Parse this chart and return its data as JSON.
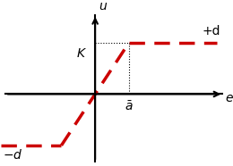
{
  "xlim": [
    -2.8,
    3.8
  ],
  "ylim": [
    -2.5,
    2.8
  ],
  "a_bar": 1.0,
  "d": 1.8,
  "line_color": "#cc0000",
  "axis_color": "#000000",
  "label_u": "u",
  "label_e": "e",
  "label_K": "K",
  "label_a": "$\\bar{a}$",
  "label_plus_d": "+d",
  "label_minus_d": "$-d$",
  "bg_color": "#ffffff",
  "font_size": 10,
  "lw": 2.5
}
